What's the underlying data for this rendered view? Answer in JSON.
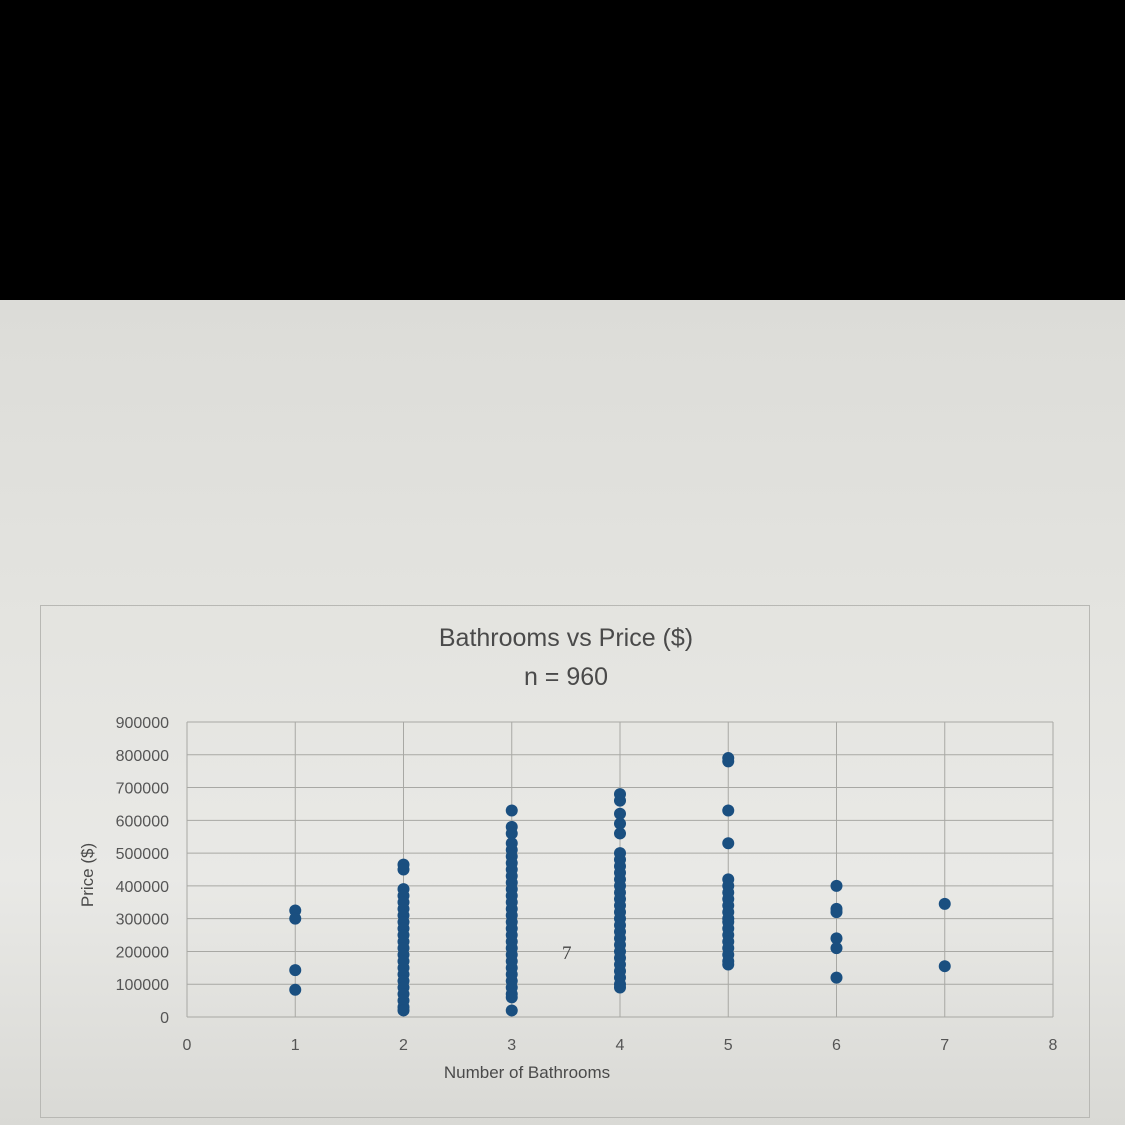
{
  "page_number": "7",
  "chart_data": {
    "type": "scatter",
    "title": "Bathrooms vs Price ($)",
    "subtitle": "n = 960",
    "xlabel": "Number of Bathrooms",
    "ylabel": "Price ($)",
    "xlim": [
      0,
      8
    ],
    "ylim": [
      0,
      900000
    ],
    "x_ticks": [
      "0",
      "1",
      "2",
      "3",
      "4",
      "5",
      "6",
      "7",
      "8"
    ],
    "y_ticks": [
      "0",
      "100000",
      "200000",
      "300000",
      "400000",
      "500000",
      "600000",
      "700000",
      "800000",
      "900000"
    ],
    "grid": true,
    "legend": "none",
    "marker_color": "#1a4f80",
    "series": [
      {
        "points_by_x": {
          "1": [
            325000,
            300000,
            143000,
            83000
          ],
          "2": [
            465000,
            450000,
            390000,
            370000,
            350000,
            330000,
            310000,
            290000,
            270000,
            250000,
            230000,
            210000,
            190000,
            170000,
            150000,
            130000,
            110000,
            90000,
            70000,
            50000,
            30000,
            20000
          ],
          "3": [
            630000,
            580000,
            560000,
            530000,
            510000,
            490000,
            470000,
            450000,
            430000,
            410000,
            390000,
            370000,
            350000,
            330000,
            310000,
            290000,
            270000,
            250000,
            230000,
            210000,
            190000,
            170000,
            150000,
            130000,
            110000,
            90000,
            70000,
            60000,
            20000
          ],
          "4": [
            680000,
            660000,
            620000,
            590000,
            560000,
            500000,
            480000,
            460000,
            440000,
            420000,
            400000,
            380000,
            360000,
            340000,
            320000,
            300000,
            280000,
            260000,
            240000,
            220000,
            200000,
            180000,
            160000,
            140000,
            120000,
            100000,
            90000
          ],
          "5": [
            790000,
            780000,
            630000,
            530000,
            420000,
            400000,
            380000,
            360000,
            340000,
            320000,
            300000,
            290000,
            270000,
            250000,
            230000,
            210000,
            190000,
            170000,
            160000
          ],
          "6": [
            400000,
            330000,
            320000,
            240000,
            210000,
            120000
          ],
          "7": [
            345000,
            155000
          ]
        }
      }
    ]
  }
}
